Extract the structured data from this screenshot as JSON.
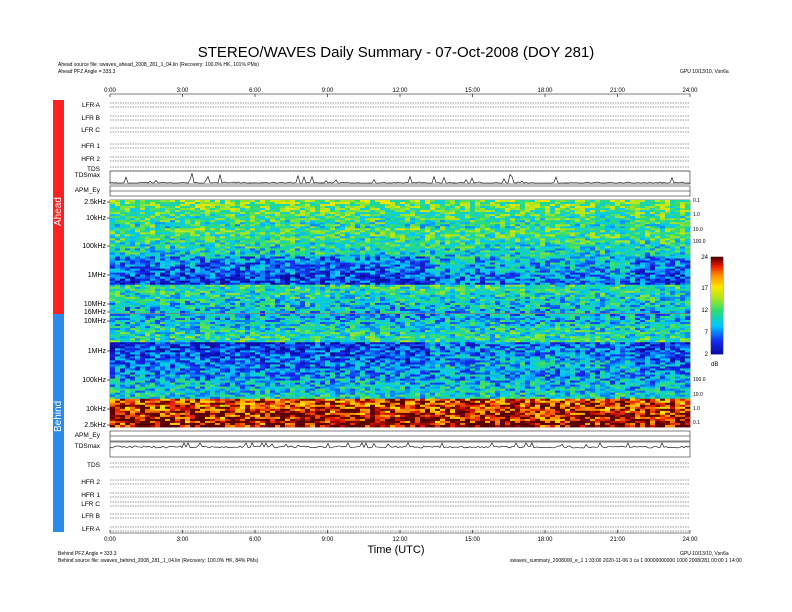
{
  "title": "STEREO/WAVES Daily Summary - 07-Oct-2008 (DOY 281)",
  "header": {
    "ahead_source": "Ahead source file: swaves_ahead_2008_281_1_04.lin (Recovery: 100.0% HK, 101% PMs)",
    "ahead_pfz": "Ahead PFZ Angle = 333.3",
    "top_right": "GPU 10/13/10, Vsn6a"
  },
  "footer": {
    "behind_pfz": "Behind PFZ Angle = 333.3",
    "behind_source": "Behind source file: swaves_behind_2008_281_1_04.lin (Recovery: 100.0% HK, 84% PMs)",
    "bottom_right": "GPU 10/13/10, Vsn6a",
    "bottom_right2": "swaves_summary_2008000_e_1 1:33:00 2020-11-06 3 ca 1 00000000000 1000 2008/281 00:00 1 14:00"
  },
  "sides": {
    "ahead": "Ahead",
    "behind": "Behind"
  },
  "chart_data": {
    "type": "heatmap",
    "xlabel": "Time (UTC)",
    "x_ticks": [
      "0:00",
      "3:00",
      "6:00",
      "9:00",
      "12:00",
      "15:00",
      "18:00",
      "21:00",
      "24:00"
    ],
    "xlim": [
      0,
      24
    ],
    "colorbar": {
      "label": "dB",
      "ticks": [
        "24",
        "17",
        "12",
        "7",
        "2"
      ],
      "range": [
        2,
        24
      ]
    },
    "ahead_rows": [
      "LFR A",
      "LFR B",
      "LFR C",
      "HFR 1",
      "HFR 2",
      "TDS",
      "TDSmax",
      "APM_Ey"
    ],
    "behind_rows": [
      "APM_Ey",
      "TDSmax",
      "TDS",
      "HFR 2",
      "HFR 1",
      "LFR C",
      "LFR B",
      "LFR A"
    ],
    "ahead_freq_ticks": [
      "2.5kHz",
      "10kHz",
      "100kHz",
      "1MHz",
      "10MHz",
      "16MHz"
    ],
    "behind_freq_ticks": [
      "10MHz",
      "1MHz",
      "100kHz",
      "10kHz",
      "2.5kHz"
    ],
    "ahead_right_ticks": [
      "0.1",
      "1.0",
      "10.0",
      "100.0"
    ],
    "behind_right_ticks": [
      "100.0",
      "10.0",
      "1.0",
      "0.1"
    ],
    "ahead_spectrum_bands": [
      {
        "freq": "2.5kHz-10kHz",
        "level": 12
      },
      {
        "freq": "10kHz-100kHz",
        "level": 11
      },
      {
        "freq": "100kHz-1MHz",
        "level": 6
      },
      {
        "freq": "1MHz-10MHz",
        "level": 10
      }
    ],
    "behind_spectrum_bands": [
      {
        "freq": "1MHz-10MHz",
        "level": 10
      },
      {
        "freq": "100kHz-1MHz",
        "level": 6
      },
      {
        "freq": "10kHz-100kHz",
        "level": 9
      },
      {
        "freq": "2.5kHz-10kHz",
        "level": 22
      }
    ]
  }
}
